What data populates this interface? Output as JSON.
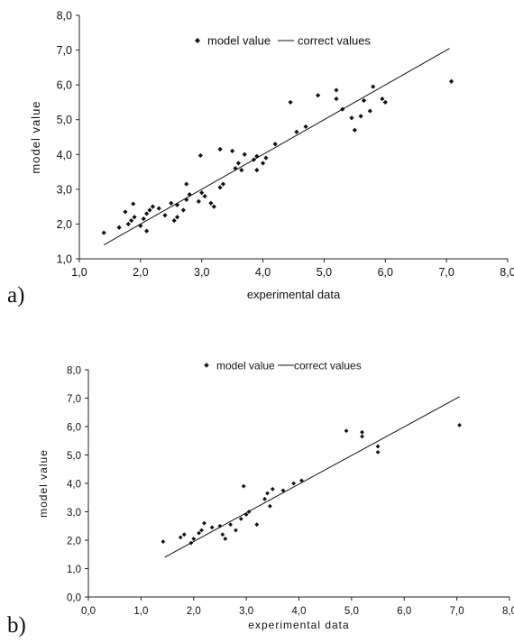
{
  "panel_labels": [
    "a)",
    "b)"
  ],
  "chart_data": [
    {
      "type": "scatter",
      "panel": "a)",
      "xlabel": "experimental data",
      "ylabel": "model value",
      "xlim": [
        1.0,
        8.0
      ],
      "ylim": [
        1.0,
        8.0
      ],
      "xticks": [
        "1,0",
        "2,0",
        "3,0",
        "4,0",
        "5,0",
        "6,0",
        "7,0",
        "8,0"
      ],
      "yticks": [
        "1,0",
        "2,0",
        "3,0",
        "4,0",
        "5,0",
        "6,0",
        "7,0",
        "8,0"
      ],
      "legend": [
        "model value",
        "correct values"
      ],
      "legend_position": "top-center",
      "grid": false,
      "series": [
        {
          "name": "model value",
          "kind": "scatter",
          "points": [
            [
              1.4,
              1.75
            ],
            [
              1.65,
              1.9
            ],
            [
              1.75,
              2.35
            ],
            [
              1.8,
              2.0
            ],
            [
              1.85,
              2.1
            ],
            [
              1.9,
              2.2
            ],
            [
              1.88,
              2.58
            ],
            [
              2.0,
              1.95
            ],
            [
              2.05,
              2.15
            ],
            [
              2.1,
              2.3
            ],
            [
              2.15,
              2.4
            ],
            [
              2.2,
              2.5
            ],
            [
              2.1,
              1.8
            ],
            [
              2.3,
              2.45
            ],
            [
              2.4,
              2.25
            ],
            [
              2.5,
              2.6
            ],
            [
              2.55,
              2.1
            ],
            [
              2.6,
              2.2
            ],
            [
              2.6,
              2.55
            ],
            [
              2.7,
              2.4
            ],
            [
              2.75,
              2.7
            ],
            [
              2.8,
              2.85
            ],
            [
              2.75,
              3.15
            ],
            [
              2.95,
              2.65
            ],
            [
              3.0,
              2.9
            ],
            [
              3.05,
              2.8
            ],
            [
              2.98,
              3.97
            ],
            [
              3.15,
              2.6
            ],
            [
              3.2,
              2.5
            ],
            [
              3.3,
              3.05
            ],
            [
              3.35,
              3.15
            ],
            [
              3.3,
              4.15
            ],
            [
              3.5,
              4.1
            ],
            [
              3.55,
              3.6
            ],
            [
              3.6,
              3.75
            ],
            [
              3.65,
              3.55
            ],
            [
              3.7,
              4.0
            ],
            [
              3.85,
              3.85
            ],
            [
              3.9,
              3.95
            ],
            [
              3.9,
              3.55
            ],
            [
              4.0,
              3.75
            ],
            [
              4.05,
              3.9
            ],
            [
              4.2,
              4.3
            ],
            [
              4.45,
              5.5
            ],
            [
              4.55,
              4.65
            ],
            [
              4.7,
              4.8
            ],
            [
              4.9,
              5.7
            ],
            [
              5.2,
              5.85
            ],
            [
              5.2,
              5.6
            ],
            [
              5.3,
              5.3
            ],
            [
              5.45,
              5.05
            ],
            [
              5.5,
              4.7
            ],
            [
              5.6,
              5.1
            ],
            [
              5.65,
              5.55
            ],
            [
              5.75,
              5.25
            ],
            [
              5.8,
              5.95
            ],
            [
              5.95,
              5.6
            ],
            [
              6.0,
              5.5
            ],
            [
              7.08,
              6.1
            ]
          ]
        },
        {
          "name": "correct values",
          "kind": "line",
          "points": [
            [
              1.4,
              1.4
            ],
            [
              7.05,
              7.05
            ]
          ]
        }
      ]
    },
    {
      "type": "scatter",
      "panel": "b)",
      "xlabel": "experimental data",
      "ylabel": "model value",
      "xlim": [
        0.0,
        8.0
      ],
      "ylim": [
        0.0,
        8.0
      ],
      "xticks": [
        "0,0",
        "1,0",
        "2,0",
        "3,0",
        "4,0",
        "5,0",
        "6,0",
        "7,0",
        "8,0"
      ],
      "yticks": [
        "0,0",
        "1,0",
        "2,0",
        "3,0",
        "4,0",
        "5,0",
        "6,0",
        "7,0",
        "8,0"
      ],
      "legend": [
        "model value",
        "correct values"
      ],
      "legend_position": "top-center",
      "grid": false,
      "series": [
        {
          "name": "model value",
          "kind": "scatter",
          "points": [
            [
              1.42,
              1.95
            ],
            [
              1.75,
              2.1
            ],
            [
              1.82,
              2.2
            ],
            [
              1.95,
              1.9
            ],
            [
              2.0,
              2.05
            ],
            [
              2.1,
              2.25
            ],
            [
              2.15,
              2.35
            ],
            [
              2.2,
              2.6
            ],
            [
              2.35,
              2.45
            ],
            [
              2.5,
              2.5
            ],
            [
              2.55,
              2.2
            ],
            [
              2.6,
              2.05
            ],
            [
              2.7,
              2.55
            ],
            [
              2.8,
              2.35
            ],
            [
              2.9,
              2.75
            ],
            [
              2.95,
              3.9
            ],
            [
              3.0,
              2.9
            ],
            [
              3.05,
              3.0
            ],
            [
              3.2,
              2.55
            ],
            [
              3.35,
              3.45
            ],
            [
              3.4,
              3.65
            ],
            [
              3.45,
              3.2
            ],
            [
              3.5,
              3.8
            ],
            [
              3.7,
              3.75
            ],
            [
              3.9,
              4.0
            ],
            [
              4.05,
              4.1
            ],
            [
              4.9,
              5.85
            ],
            [
              5.2,
              5.8
            ],
            [
              5.2,
              5.65
            ],
            [
              5.5,
              5.3
            ],
            [
              5.5,
              5.1
            ],
            [
              7.05,
              6.05
            ]
          ]
        },
        {
          "name": "correct values",
          "kind": "line",
          "points": [
            [
              1.45,
              1.4
            ],
            [
              7.05,
              7.05
            ]
          ]
        }
      ]
    }
  ]
}
